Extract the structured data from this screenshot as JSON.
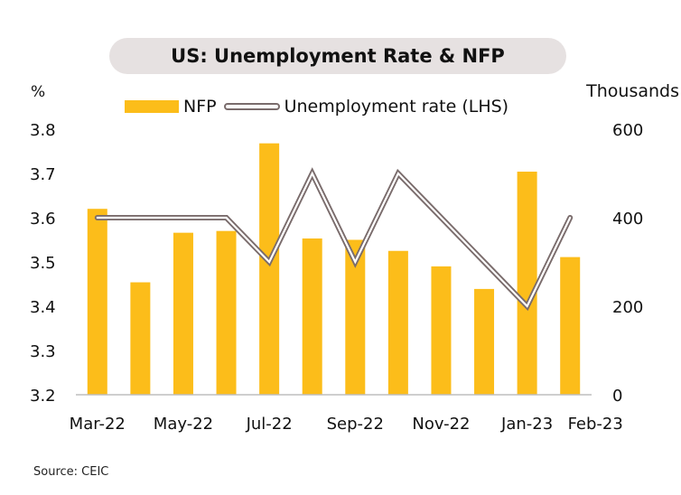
{
  "title": "US: Unemployment Rate & NFP",
  "source": "Source: CEIC",
  "chart_data": {
    "type": "bar+line",
    "title": "US: Unemployment Rate & NFP",
    "left_axis": {
      "unit": "%",
      "ylim": [
        3.2,
        3.8
      ],
      "ticks": [
        "3.8",
        "3.7",
        "3.6",
        "3.5",
        "3.4",
        "3.3",
        "3.2"
      ]
    },
    "right_axis": {
      "unit": "Thousands",
      "ylim": [
        0,
        600
      ],
      "ticks": [
        "600",
        "400",
        "200",
        "0"
      ]
    },
    "categories": [
      "Mar-22",
      "Apr-22",
      "May-22",
      "Jun-22",
      "Jul-22",
      "Aug-22",
      "Sep-22",
      "Oct-22",
      "Nov-22",
      "Dec-22",
      "Jan-23",
      "Feb-23"
    ],
    "x_tick_labels": [
      "Mar-22",
      "May-22",
      "Jul-22",
      "Sep-22",
      "Nov-22",
      "Jan-23",
      "Feb-23"
    ],
    "series": [
      {
        "name": "NFP",
        "type": "bar",
        "axis": "right",
        "color": "#fcbd1a",
        "values": [
          420,
          254,
          366,
          370,
          568,
          353,
          350,
          325,
          290,
          239,
          504,
          311
        ]
      },
      {
        "name": "Unemployment rate (LHS)",
        "type": "line",
        "axis": "left",
        "color": "#7a6c6c",
        "values": [
          3.6,
          3.6,
          3.6,
          3.6,
          3.5,
          3.7,
          3.5,
          3.7,
          3.6,
          3.5,
          3.4,
          3.6
        ]
      }
    ],
    "legend_position": "top",
    "grid": false
  }
}
